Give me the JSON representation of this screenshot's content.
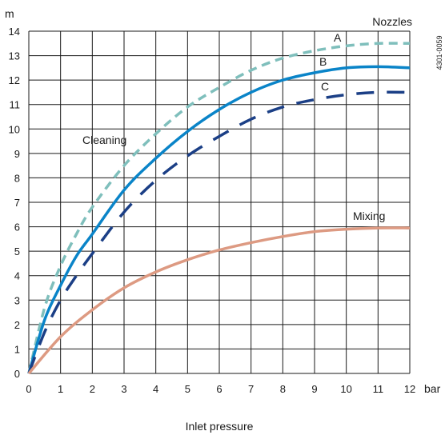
{
  "chart_data": {
    "type": "line",
    "xlabel": "Inlet pressure",
    "x_unit": "bar",
    "y_unit": "m",
    "xlim": [
      0,
      12
    ],
    "ylim": [
      0,
      14
    ],
    "x_ticks": [
      "0",
      "1",
      "2",
      "3",
      "4",
      "5",
      "6",
      "7",
      "8",
      "9",
      "10",
      "11",
      "12"
    ],
    "y_ticks": [
      "0",
      "1",
      "2",
      "3",
      "4",
      "5",
      "6",
      "7",
      "8",
      "9",
      "10",
      "11",
      "12",
      "13",
      "14"
    ],
    "grid": true,
    "ref_code": "4301-0059",
    "annotations": {
      "nozzles": "Nozzles",
      "cleaning": "Cleaning",
      "mixing": "Mixing",
      "a": "A",
      "b": "B",
      "c": "C"
    },
    "series": [
      {
        "name": "A",
        "color": "#7fbfbc",
        "dash": "dash",
        "points": [
          [
            0,
            0
          ],
          [
            0.5,
            2.7
          ],
          [
            1,
            4.4
          ],
          [
            1.5,
            5.7
          ],
          [
            2,
            6.8
          ],
          [
            3,
            8.5
          ],
          [
            4,
            9.8
          ],
          [
            5,
            10.9
          ],
          [
            6,
            11.7
          ],
          [
            7,
            12.4
          ],
          [
            8,
            12.9
          ],
          [
            9,
            13.2
          ],
          [
            10,
            13.4
          ],
          [
            11,
            13.5
          ],
          [
            12,
            13.5
          ]
        ]
      },
      {
        "name": "B",
        "color": "#0a84c8",
        "dash": "solid",
        "points": [
          [
            0,
            0
          ],
          [
            0.5,
            2.2
          ],
          [
            1,
            3.6
          ],
          [
            1.5,
            4.8
          ],
          [
            2,
            5.7
          ],
          [
            3,
            7.5
          ],
          [
            4,
            8.8
          ],
          [
            5,
            9.9
          ],
          [
            6,
            10.8
          ],
          [
            7,
            11.5
          ],
          [
            8,
            12.0
          ],
          [
            9,
            12.3
          ],
          [
            10,
            12.5
          ],
          [
            11,
            12.55
          ],
          [
            12,
            12.5
          ]
        ]
      },
      {
        "name": "C",
        "color": "#1b3f86",
        "dash": "longdash",
        "points": [
          [
            0,
            0
          ],
          [
            0.5,
            1.7
          ],
          [
            1,
            3.0
          ],
          [
            1.5,
            4.0
          ],
          [
            2,
            4.9
          ],
          [
            3,
            6.6
          ],
          [
            4,
            7.9
          ],
          [
            5,
            8.9
          ],
          [
            6,
            9.7
          ],
          [
            7,
            10.4
          ],
          [
            8,
            10.9
          ],
          [
            9,
            11.2
          ],
          [
            10,
            11.4
          ],
          [
            11,
            11.5
          ],
          [
            12,
            11.5
          ]
        ]
      },
      {
        "name": "Mixing",
        "color": "#dd9a82",
        "dash": "solid",
        "points": [
          [
            0,
            0
          ],
          [
            1,
            1.5
          ],
          [
            2,
            2.6
          ],
          [
            3,
            3.5
          ],
          [
            4,
            4.15
          ],
          [
            5,
            4.65
          ],
          [
            6,
            5.05
          ],
          [
            7,
            5.35
          ],
          [
            8,
            5.6
          ],
          [
            9,
            5.8
          ],
          [
            10,
            5.9
          ],
          [
            11,
            5.95
          ],
          [
            12,
            5.95
          ]
        ]
      }
    ]
  }
}
